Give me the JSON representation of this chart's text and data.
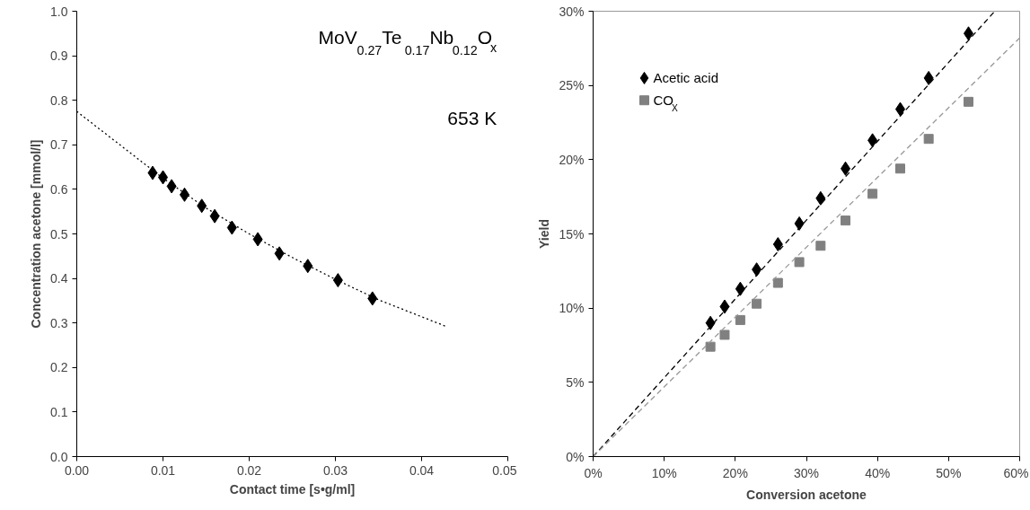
{
  "chart_data": [
    {
      "type": "scatter",
      "xlabel": "Contact time [s•g/ml]",
      "ylabel": "Concentration acetone [mmol/l]",
      "annotations": [
        "MoV$_{0.27}$Te$_{0.17}$Nb$_{0.12}$O$_{x}$",
        "653 K"
      ],
      "xlim": [
        0,
        0.05
      ],
      "xticks": [
        {
          "value": 0,
          "label": "0.00"
        },
        0.01,
        0.02,
        0.03,
        0.04,
        {
          "value": 0.05,
          "label": "0.05"
        }
      ],
      "ylim": [
        0,
        1.0
      ],
      "yticks": [
        {
          "value": 0,
          "label": "0.0"
        },
        0.1,
        0.2,
        0.3,
        0.4,
        0.5,
        0.6,
        0.7,
        0.8,
        0.9,
        {
          "value": 1.0,
          "label": "1.0"
        }
      ],
      "grid": false,
      "legend": false,
      "series": [
        {
          "type": "scatter",
          "marker": "diamond",
          "color": "#000000",
          "x": [
            0.0088,
            0.01,
            0.011,
            0.0125,
            0.0145,
            0.016,
            0.018,
            0.021,
            0.0235,
            0.0268,
            0.0303,
            0.0343
          ],
          "values": [
            0.637,
            0.627,
            0.607,
            0.588,
            0.563,
            0.54,
            0.514,
            0.488,
            0.456,
            0.428,
            0.396,
            0.355
          ]
        },
        {
          "type": "line",
          "line_style": "dotted",
          "marker": "none",
          "color": "#000000",
          "x": [
            0,
            0.005,
            0.01,
            0.015,
            0.02,
            0.025,
            0.03,
            0.035,
            0.04,
            0.043
          ],
          "values": [
            0.775,
            0.7,
            0.625,
            0.558,
            0.5,
            0.447,
            0.398,
            0.352,
            0.314,
            0.291
          ]
        }
      ]
    },
    {
      "type": "scatter",
      "xlabel": "Conversion acetone",
      "ylabel": "Yield",
      "xlim": [
        0,
        60
      ],
      "xticks": [
        {
          "value": 0,
          "label": "0%"
        },
        {
          "value": 10,
          "label": "10%"
        },
        {
          "value": 20,
          "label": "20%"
        },
        {
          "value": 30,
          "label": "30%"
        },
        {
          "value": 40,
          "label": "40%"
        },
        {
          "value": 50,
          "label": "50%"
        },
        {
          "value": 60,
          "label": "60%"
        }
      ],
      "ylim": [
        0,
        30
      ],
      "yticks": [
        {
          "value": 0,
          "label": "0%"
        },
        {
          "value": 5,
          "label": "5%"
        },
        {
          "value": 10,
          "label": "10%"
        },
        {
          "value": 15,
          "label": "15%"
        },
        {
          "value": 20,
          "label": "20%"
        },
        {
          "value": 25,
          "label": "25%"
        },
        {
          "value": 30,
          "label": "30%"
        }
      ],
      "grid": false,
      "legend": "top left",
      "series": [
        {
          "type": "scatter",
          "name": "Acetic acid",
          "marker": "diamond",
          "color": "#000000",
          "x": [
            16.5,
            18.5,
            20.7,
            23,
            26,
            29,
            32,
            35.5,
            39.3,
            43.2,
            47.2,
            52.8
          ],
          "values": [
            9.0,
            10.1,
            11.3,
            12.6,
            14.3,
            15.7,
            17.4,
            19.4,
            21.3,
            23.4,
            25.5,
            28.5
          ]
        },
        {
          "type": "scatter",
          "name": "CO$_{X}$",
          "marker": "square",
          "color": "#808080",
          "x": [
            16.5,
            18.5,
            20.7,
            23,
            26,
            29,
            32,
            35.5,
            39.3,
            43.2,
            47.2,
            52.8
          ],
          "values": [
            7.4,
            8.2,
            9.2,
            10.3,
            11.7,
            13.1,
            14.2,
            15.9,
            17.7,
            19.4,
            21.4,
            23.9
          ]
        },
        {
          "type": "line",
          "line_style": "dashed",
          "marker": "none",
          "color": "#000000",
          "x": [
            0,
            56.5
          ],
          "values": [
            0,
            30
          ]
        },
        {
          "type": "line",
          "line_style": "dashed",
          "marker": "none",
          "color": "#999999",
          "x": [
            0,
            60
          ],
          "values": [
            0,
            28.2
          ]
        }
      ]
    }
  ]
}
